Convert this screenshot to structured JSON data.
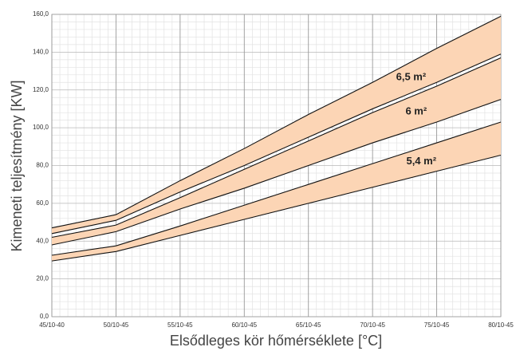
{
  "chart_data": {
    "type": "band",
    "x_label": "Elsődleges kör hőmérséklete [°C]",
    "y_label": "Kimeneti teljesítmény [KW]",
    "categories": [
      "45/10-40",
      "50/10-45",
      "55/10-45",
      "60/10-45",
      "65/10-45",
      "70/10-45",
      "75/10-45",
      "80/10-45"
    ],
    "series": [
      {
        "name": "6,5 m²",
        "color": "#fcd5b5",
        "high": [
          47,
          54,
          72,
          89,
          107,
          124,
          142,
          159
        ],
        "low": [
          44,
          51,
          66,
          80,
          95,
          110,
          124,
          139
        ]
      },
      {
        "name": "6 m²",
        "color": "#fcd5b5",
        "high": [
          42,
          48.5,
          63,
          78,
          93,
          108,
          122,
          137
        ],
        "low": [
          38,
          45,
          57,
          68,
          80,
          92,
          103,
          115
        ]
      },
      {
        "name": "5,4 m²",
        "color": "#fcd5b5",
        "high": [
          32.5,
          37.5,
          48,
          59,
          70,
          81,
          92,
          103
        ],
        "low": [
          29.5,
          34.5,
          43,
          51.5,
          60,
          68.5,
          77,
          85.5
        ]
      }
    ],
    "ylim": [
      0,
      160
    ],
    "yticks": [
      {
        "value": 0,
        "label": "0,0"
      },
      {
        "value": 20,
        "label": "20,0"
      },
      {
        "value": 40,
        "label": "40,0"
      },
      {
        "value": 60,
        "label": "60,0"
      },
      {
        "value": 80,
        "label": "80,0"
      },
      {
        "value": 100,
        "label": "100,0"
      },
      {
        "value": 120,
        "label": "120,0"
      },
      {
        "value": 140,
        "label": "140,0"
      },
      {
        "value": 160,
        "label": "160,0"
      }
    ],
    "grid": true
  }
}
